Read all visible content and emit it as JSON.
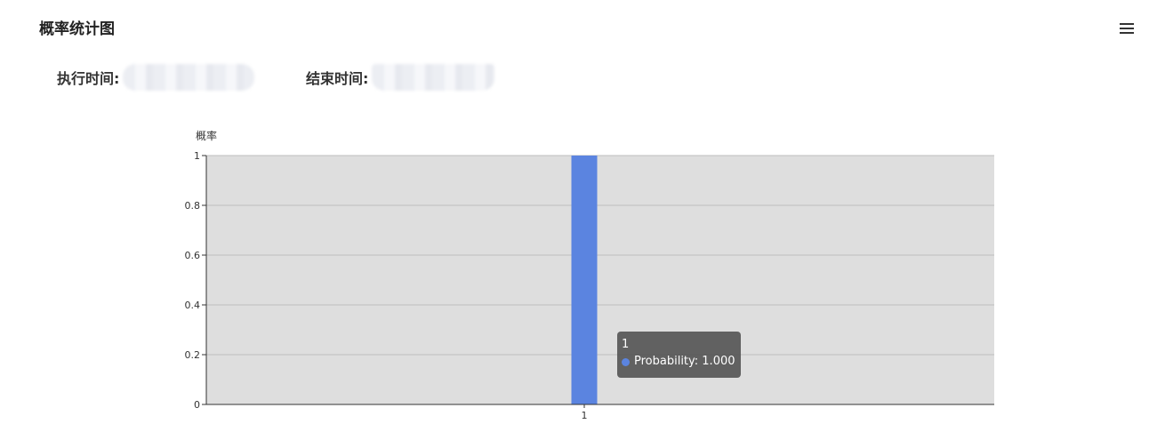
{
  "header": {
    "title": "概率统计图",
    "menu_icon": "hamburger-menu-icon"
  },
  "times": {
    "exec_label": "执行时间:",
    "exec_value": "",
    "end_label": "结束时间:",
    "end_value": ""
  },
  "chart_data": {
    "type": "bar",
    "title": "",
    "ylabel": "概率",
    "xlabel": "",
    "categories": [
      "1"
    ],
    "series": [
      {
        "name": "Probability",
        "values": [
          1.0
        ]
      }
    ],
    "ylim": [
      0,
      1
    ],
    "yticks": [
      "0",
      "0.2",
      "0.4",
      "0.6",
      "0.8",
      "1"
    ],
    "grid": true,
    "bar_color": "#5b84e0",
    "plot_background": "#dedede"
  },
  "tooltip": {
    "title": "1",
    "label": "Probability: 1.000"
  }
}
